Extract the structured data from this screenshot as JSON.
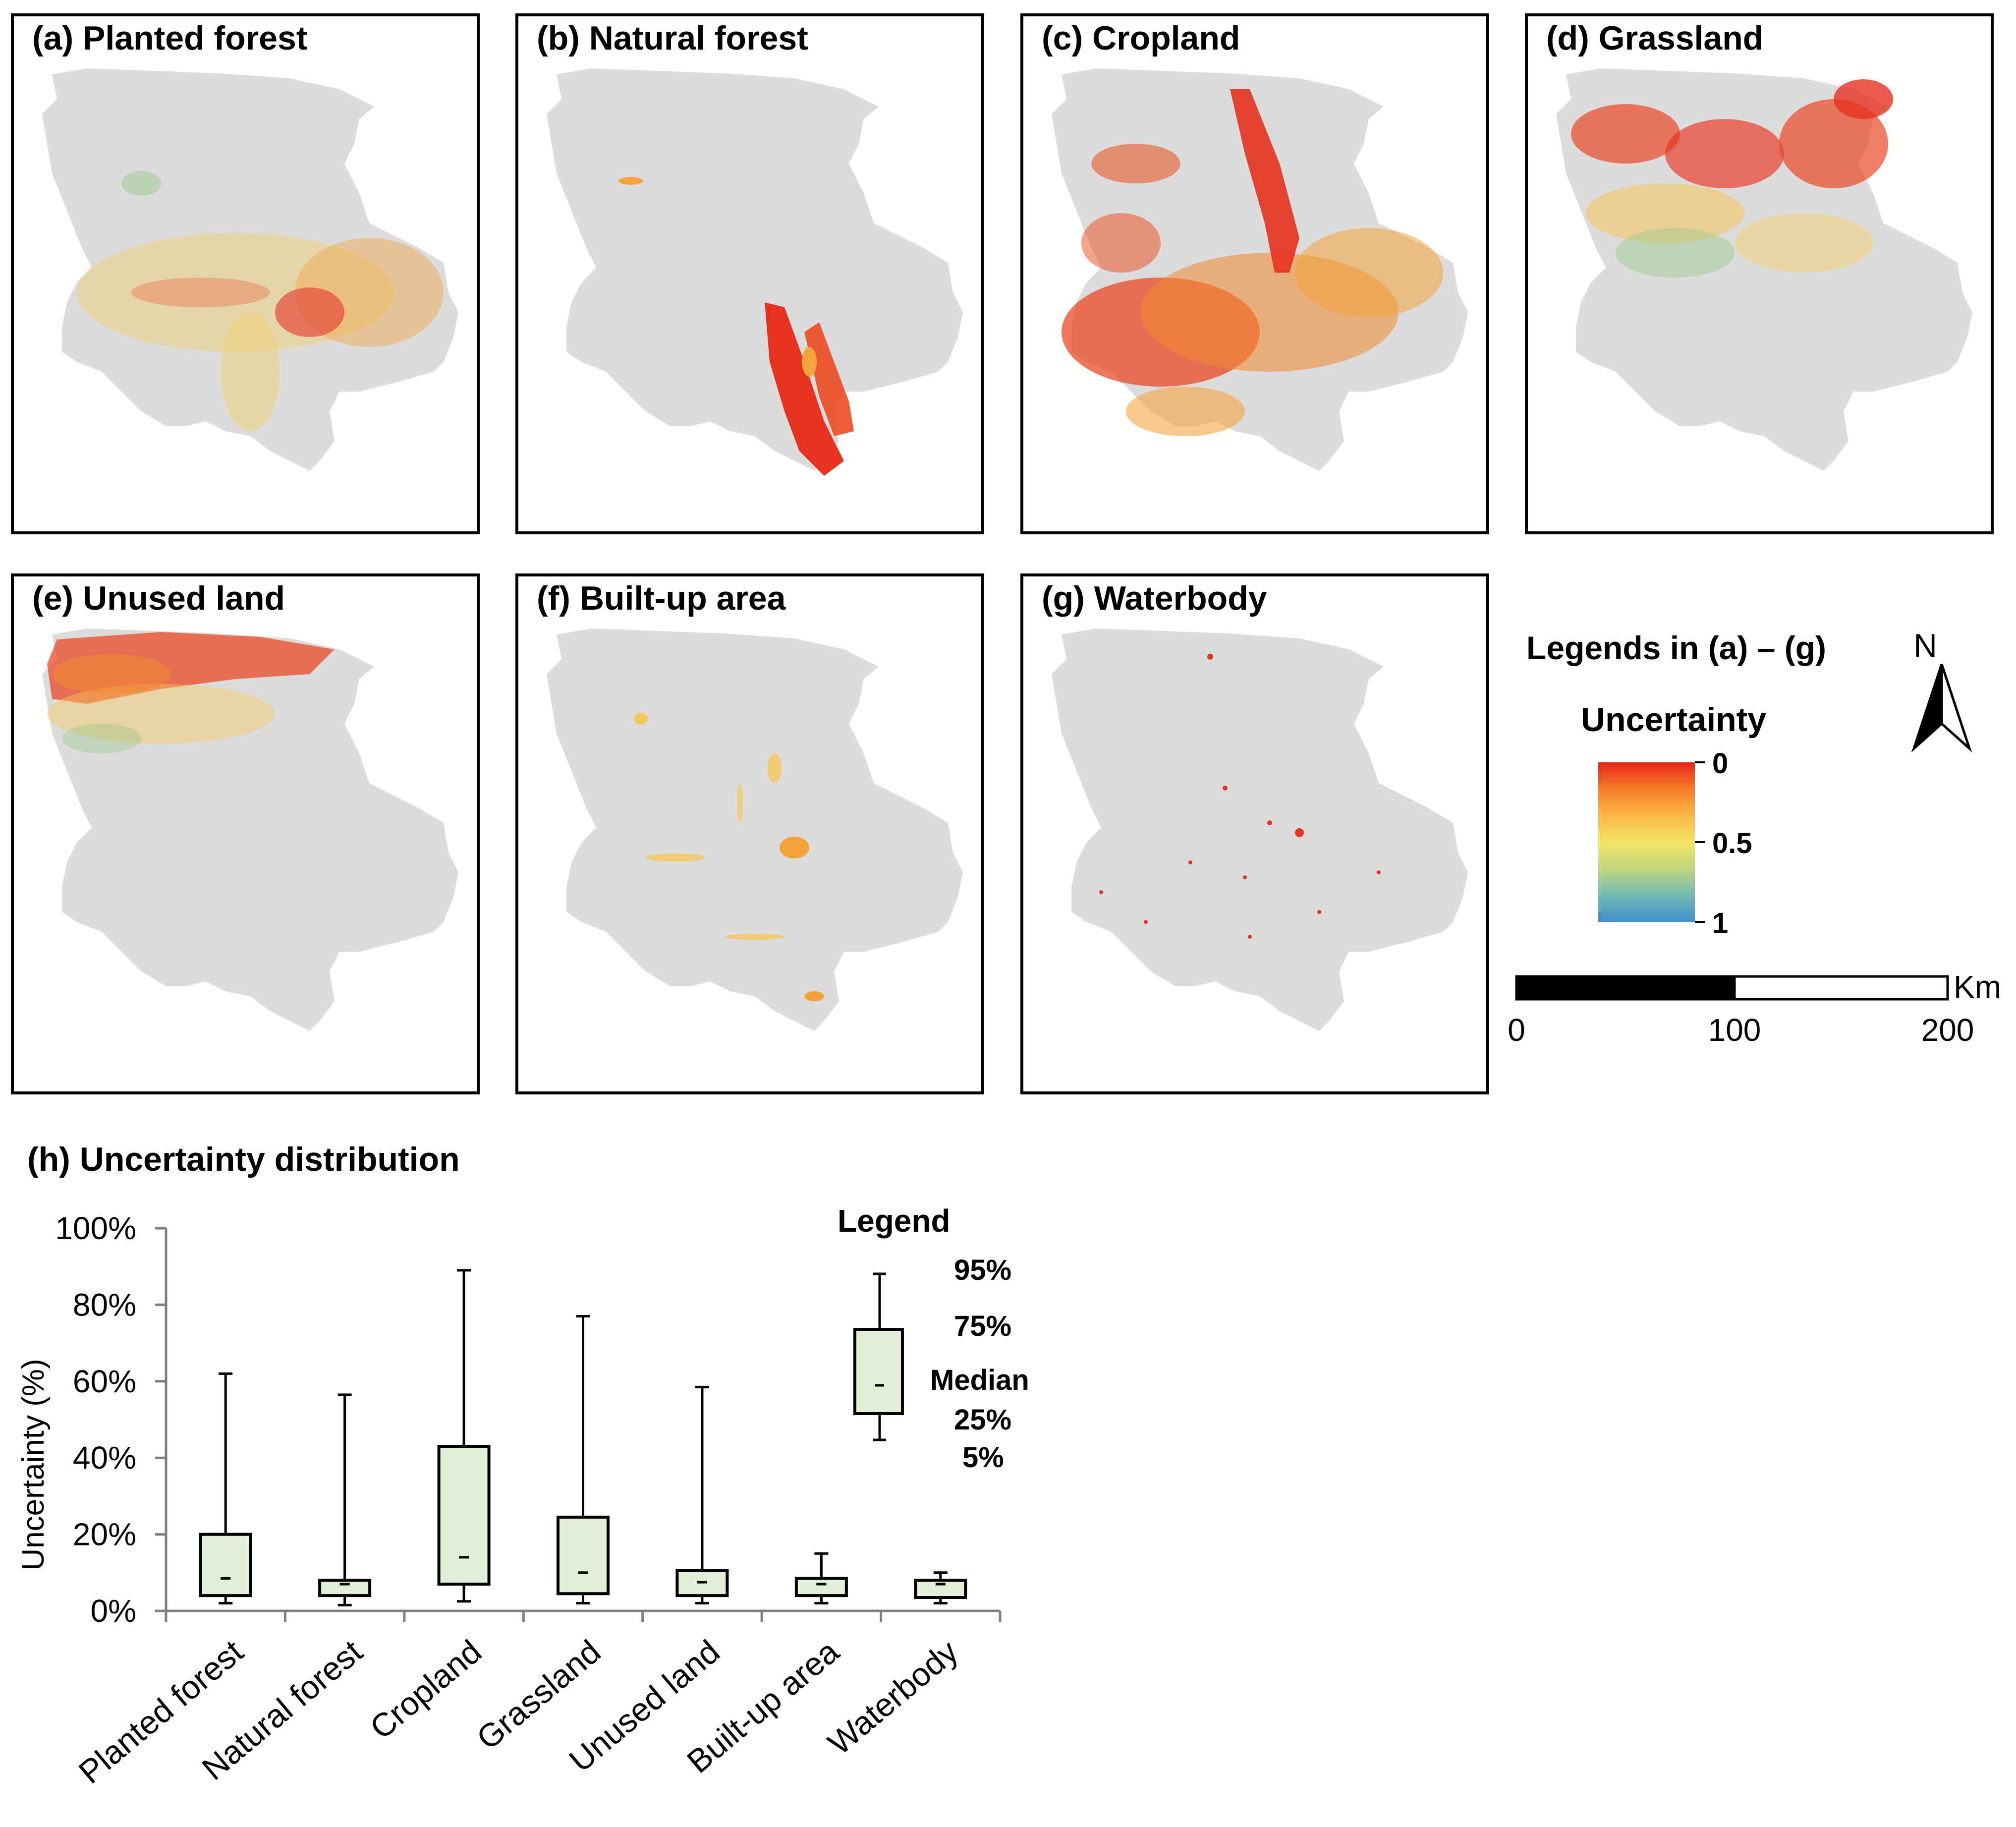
{
  "figure": {
    "panels": [
      {
        "id": "a",
        "title": "(a) Planted forest"
      },
      {
        "id": "b",
        "title": "(b) Natural forest"
      },
      {
        "id": "c",
        "title": "(c) Cropland"
      },
      {
        "id": "d",
        "title": "(d) Grassland"
      },
      {
        "id": "e",
        "title": "(e) Unused land"
      },
      {
        "id": "f",
        "title": "(f) Built-up area"
      },
      {
        "id": "g",
        "title": "(g) Waterbody"
      }
    ],
    "map_legend": {
      "heading": "Legends in (a) – (g)",
      "colorbar_title": "Uncertainty",
      "colorbar_ticks": [
        "0",
        "0.5",
        "1"
      ],
      "colorbar_colors": [
        "#e8241a",
        "#f57d2a",
        "#fbb846",
        "#f1e466",
        "#bfd77e",
        "#73b9b4",
        "#3c91cc"
      ],
      "north_label": "N",
      "scale_ticks": [
        "0",
        "100",
        "200"
      ],
      "scale_unit": "Km"
    },
    "map_colors": {
      "background": "#dcdcdc",
      "high": "#e6321e",
      "mid": "#f6a33c",
      "low": "#e8e07a",
      "green": "#9cc98a",
      "blue": "#6fb3c9"
    }
  },
  "chart_data": {
    "type": "boxplot",
    "title": "(h) Uncertainty distribution",
    "ylabel": "Uncertainty (%)",
    "ylim": [
      0,
      100
    ],
    "yticks": [
      "0%",
      "20%",
      "40%",
      "60%",
      "80%",
      "100%"
    ],
    "categories": [
      "Planted forest",
      "Natural forest",
      "Cropland",
      "Grassland",
      "Unused land",
      "Built-up area",
      "Waterbody"
    ],
    "p5": [
      2,
      1.5,
      2.5,
      2,
      2,
      2,
      2
    ],
    "p25": [
      4,
      4,
      7,
      4.5,
      4,
      4,
      3.5
    ],
    "median": [
      8.5,
      7,
      14,
      10,
      7.5,
      7,
      7
    ],
    "p75": [
      20,
      8,
      43,
      24.5,
      10.5,
      8.5,
      8
    ],
    "p95": [
      62,
      56.5,
      89,
      77,
      58.5,
      15,
      10
    ],
    "box_fill": "#e3efd9",
    "legend": {
      "heading": "Legend",
      "labels": [
        "95%",
        "75%",
        "Median",
        "25%",
        "5%"
      ]
    }
  }
}
